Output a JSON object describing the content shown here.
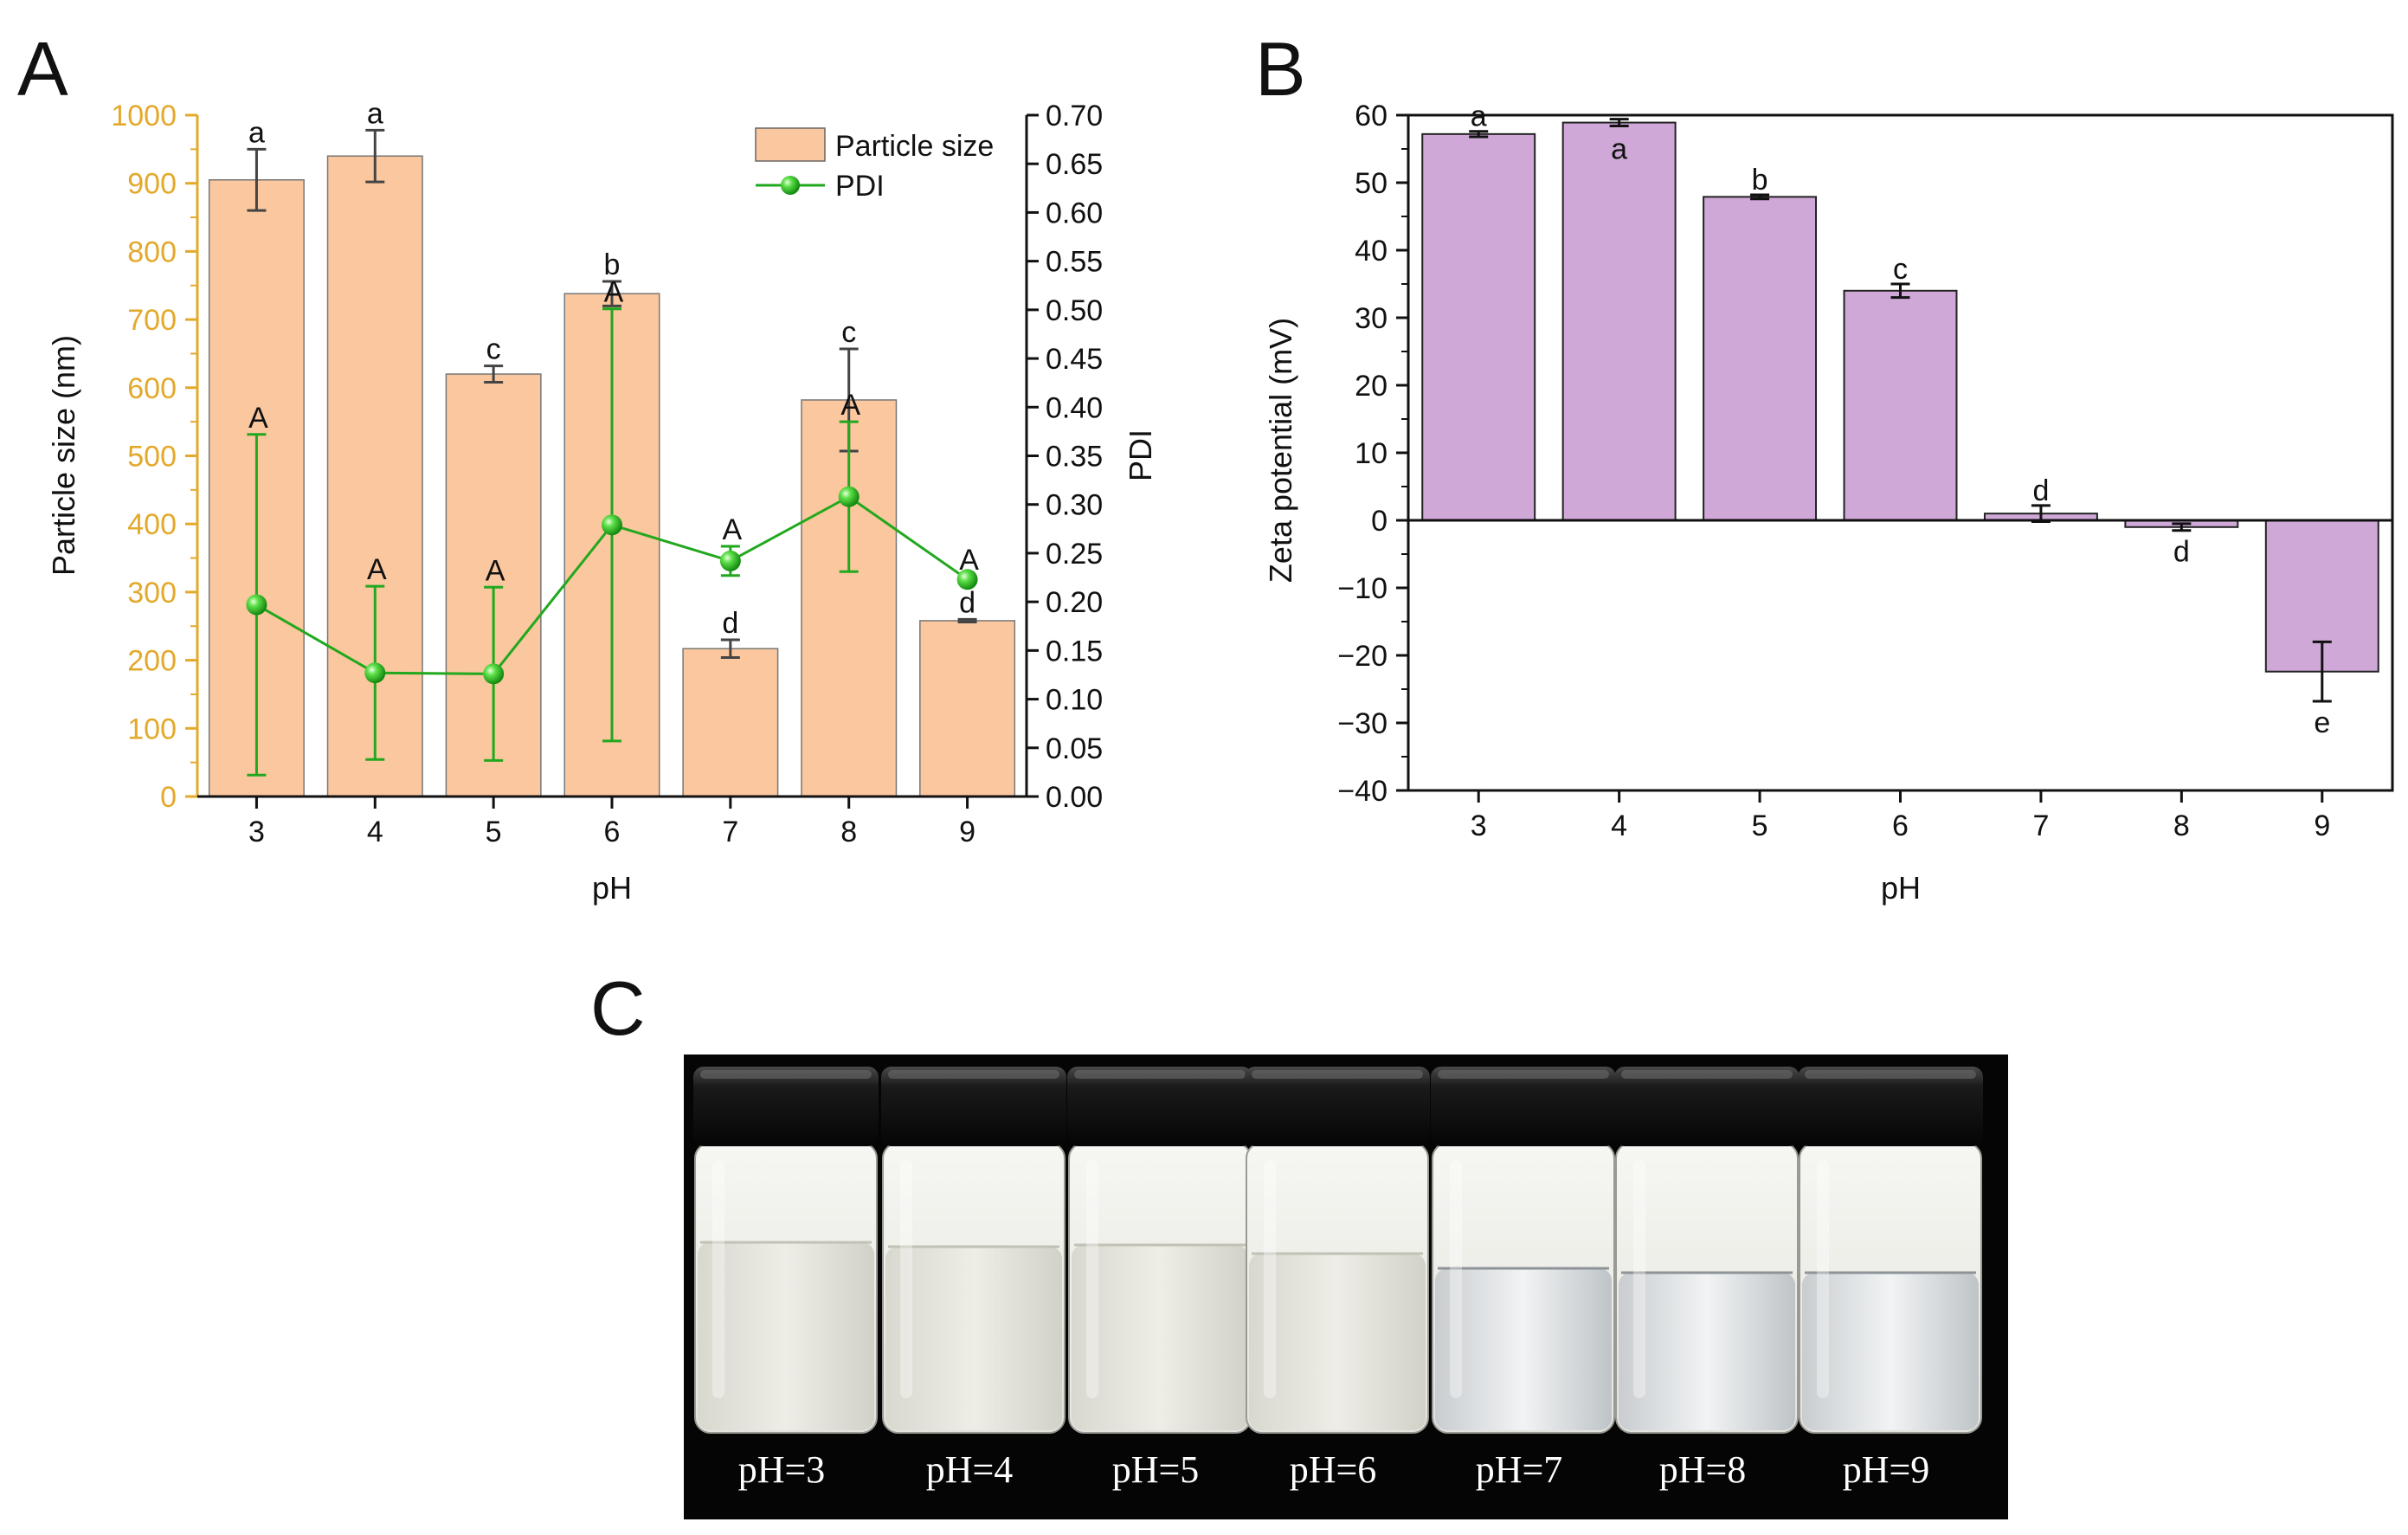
{
  "panels": {
    "a_letter": "A",
    "b_letter": "B",
    "c_letter": "C"
  },
  "chart_data": [
    {
      "id": "A",
      "type": "bar",
      "title": "",
      "xlabel": "pH",
      "ylabel": "Particle size (nm)",
      "ylabel_right": "PDI",
      "categories": [
        "3",
        "4",
        "5",
        "6",
        "7",
        "8",
        "9"
      ],
      "ylim": [
        0,
        1000
      ],
      "ylim_right": [
        0,
        0.7
      ],
      "yticks": [
        0,
        100,
        200,
        300,
        400,
        500,
        600,
        700,
        800,
        900,
        1000
      ],
      "yticks_right": [
        "0.00",
        "0.05",
        "0.10",
        "0.15",
        "0.20",
        "0.25",
        "0.30",
        "0.35",
        "0.40",
        "0.45",
        "0.50",
        "0.55",
        "0.60",
        "0.65",
        "0.70"
      ],
      "legend_position": "top-right",
      "series": [
        {
          "name": "Particle size",
          "kind": "bar",
          "axis": "left",
          "color": "#fbc79e",
          "values": [
            905,
            940,
            620,
            738,
            217,
            582,
            258
          ],
          "errors": [
            45,
            38,
            12,
            18,
            13,
            75,
            2
          ],
          "letters": [
            "a",
            "a",
            "c",
            "b",
            "d",
            "c",
            "d"
          ]
        },
        {
          "name": "PDI",
          "kind": "line",
          "axis": "right",
          "color": "#22a81e",
          "values": [
            0.197,
            0.127,
            0.126,
            0.279,
            0.242,
            0.308,
            0.223
          ],
          "errors": [
            0.175,
            0.089,
            0.089,
            0.222,
            0.015,
            0.077,
            0.003
          ],
          "letters": [
            "A",
            "A",
            "A",
            "A",
            "A",
            "A",
            "A"
          ]
        }
      ]
    },
    {
      "id": "B",
      "type": "bar",
      "title": "",
      "xlabel": "pH",
      "ylabel": "Zeta potential (mV)",
      "categories": [
        "3",
        "4",
        "5",
        "6",
        "7",
        "8",
        "9"
      ],
      "ylim": [
        -40,
        60
      ],
      "yticks": [
        -40,
        -30,
        -20,
        -10,
        0,
        10,
        20,
        30,
        40,
        50,
        60
      ],
      "series": [
        {
          "name": "Zeta potential",
          "color": "#cfa8d8",
          "values": [
            57.2,
            58.9,
            47.9,
            34.0,
            1.0,
            -1.0,
            -22.4
          ],
          "errors": [
            0.4,
            0.5,
            0.3,
            1.0,
            1.2,
            0.5,
            4.4
          ],
          "letters": [
            "a",
            "a",
            "b",
            "c",
            "d",
            "d",
            "e"
          ]
        }
      ]
    }
  ],
  "photo": {
    "labels": [
      "pH=3",
      "pH=4",
      "pH=5",
      "pH=6",
      "pH=7",
      "pH=8",
      "pH=9"
    ]
  },
  "colors": {
    "left_axis": "#e3a92b",
    "bar_a": "#fbc79e",
    "line_pdi": "#22a81e",
    "bar_b": "#cfa8d8"
  }
}
